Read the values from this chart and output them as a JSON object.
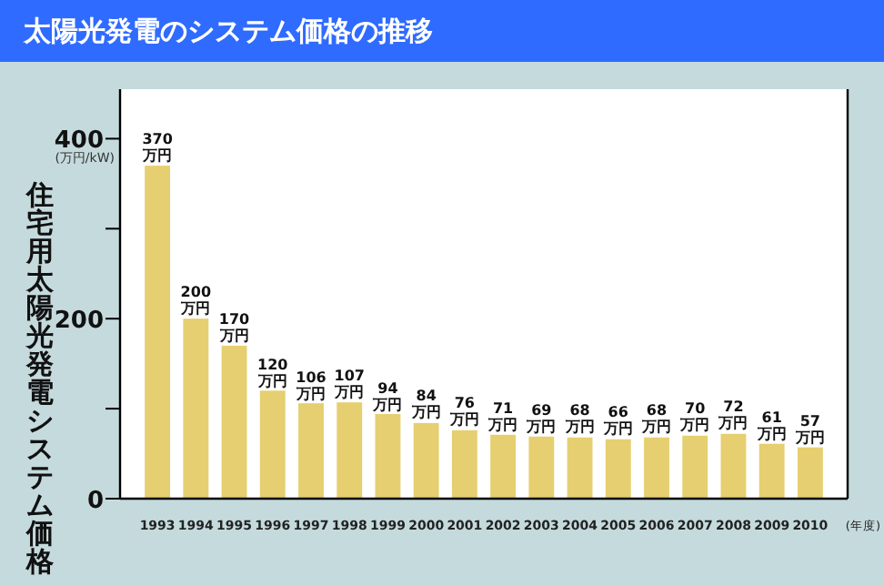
{
  "chart_data": {
    "type": "bar",
    "title": "太陽光発電のシステム価格の推移",
    "ylabel": "住宅用太陽光発電システム価格",
    "xlabel": "(年度)",
    "annotations": [
      "(万円/kW)"
    ],
    "categories": [
      "1993",
      "1994",
      "1995",
      "1996",
      "1997",
      "1998",
      "1999",
      "2000",
      "2001",
      "2002",
      "2003",
      "2004",
      "2005",
      "2006",
      "2007",
      "2008",
      "2009",
      "2010"
    ],
    "values": [
      370,
      200,
      170,
      120,
      106,
      107,
      94,
      84,
      76,
      71,
      69,
      68,
      66,
      68,
      70,
      72,
      61,
      57
    ],
    "value_labels": [
      "370 万円",
      "200 万円",
      "170 万円",
      "120 万円",
      "106 万円",
      "107 万円",
      "94 万円",
      "84 万円",
      "76 万円",
      "71 万円",
      "69 万円",
      "68 万円",
      "66 万円",
      "68 万円",
      "70 万円",
      "72 万円",
      "61 万円",
      "57 万円"
    ],
    "color": "#e6cf70",
    "ylim": [
      0,
      455
    ],
    "yticks": [
      0,
      {
        "value": 100,
        "label": null
      },
      200,
      {
        "value": 300,
        "label": null
      },
      400
    ],
    "grid": false
  }
}
